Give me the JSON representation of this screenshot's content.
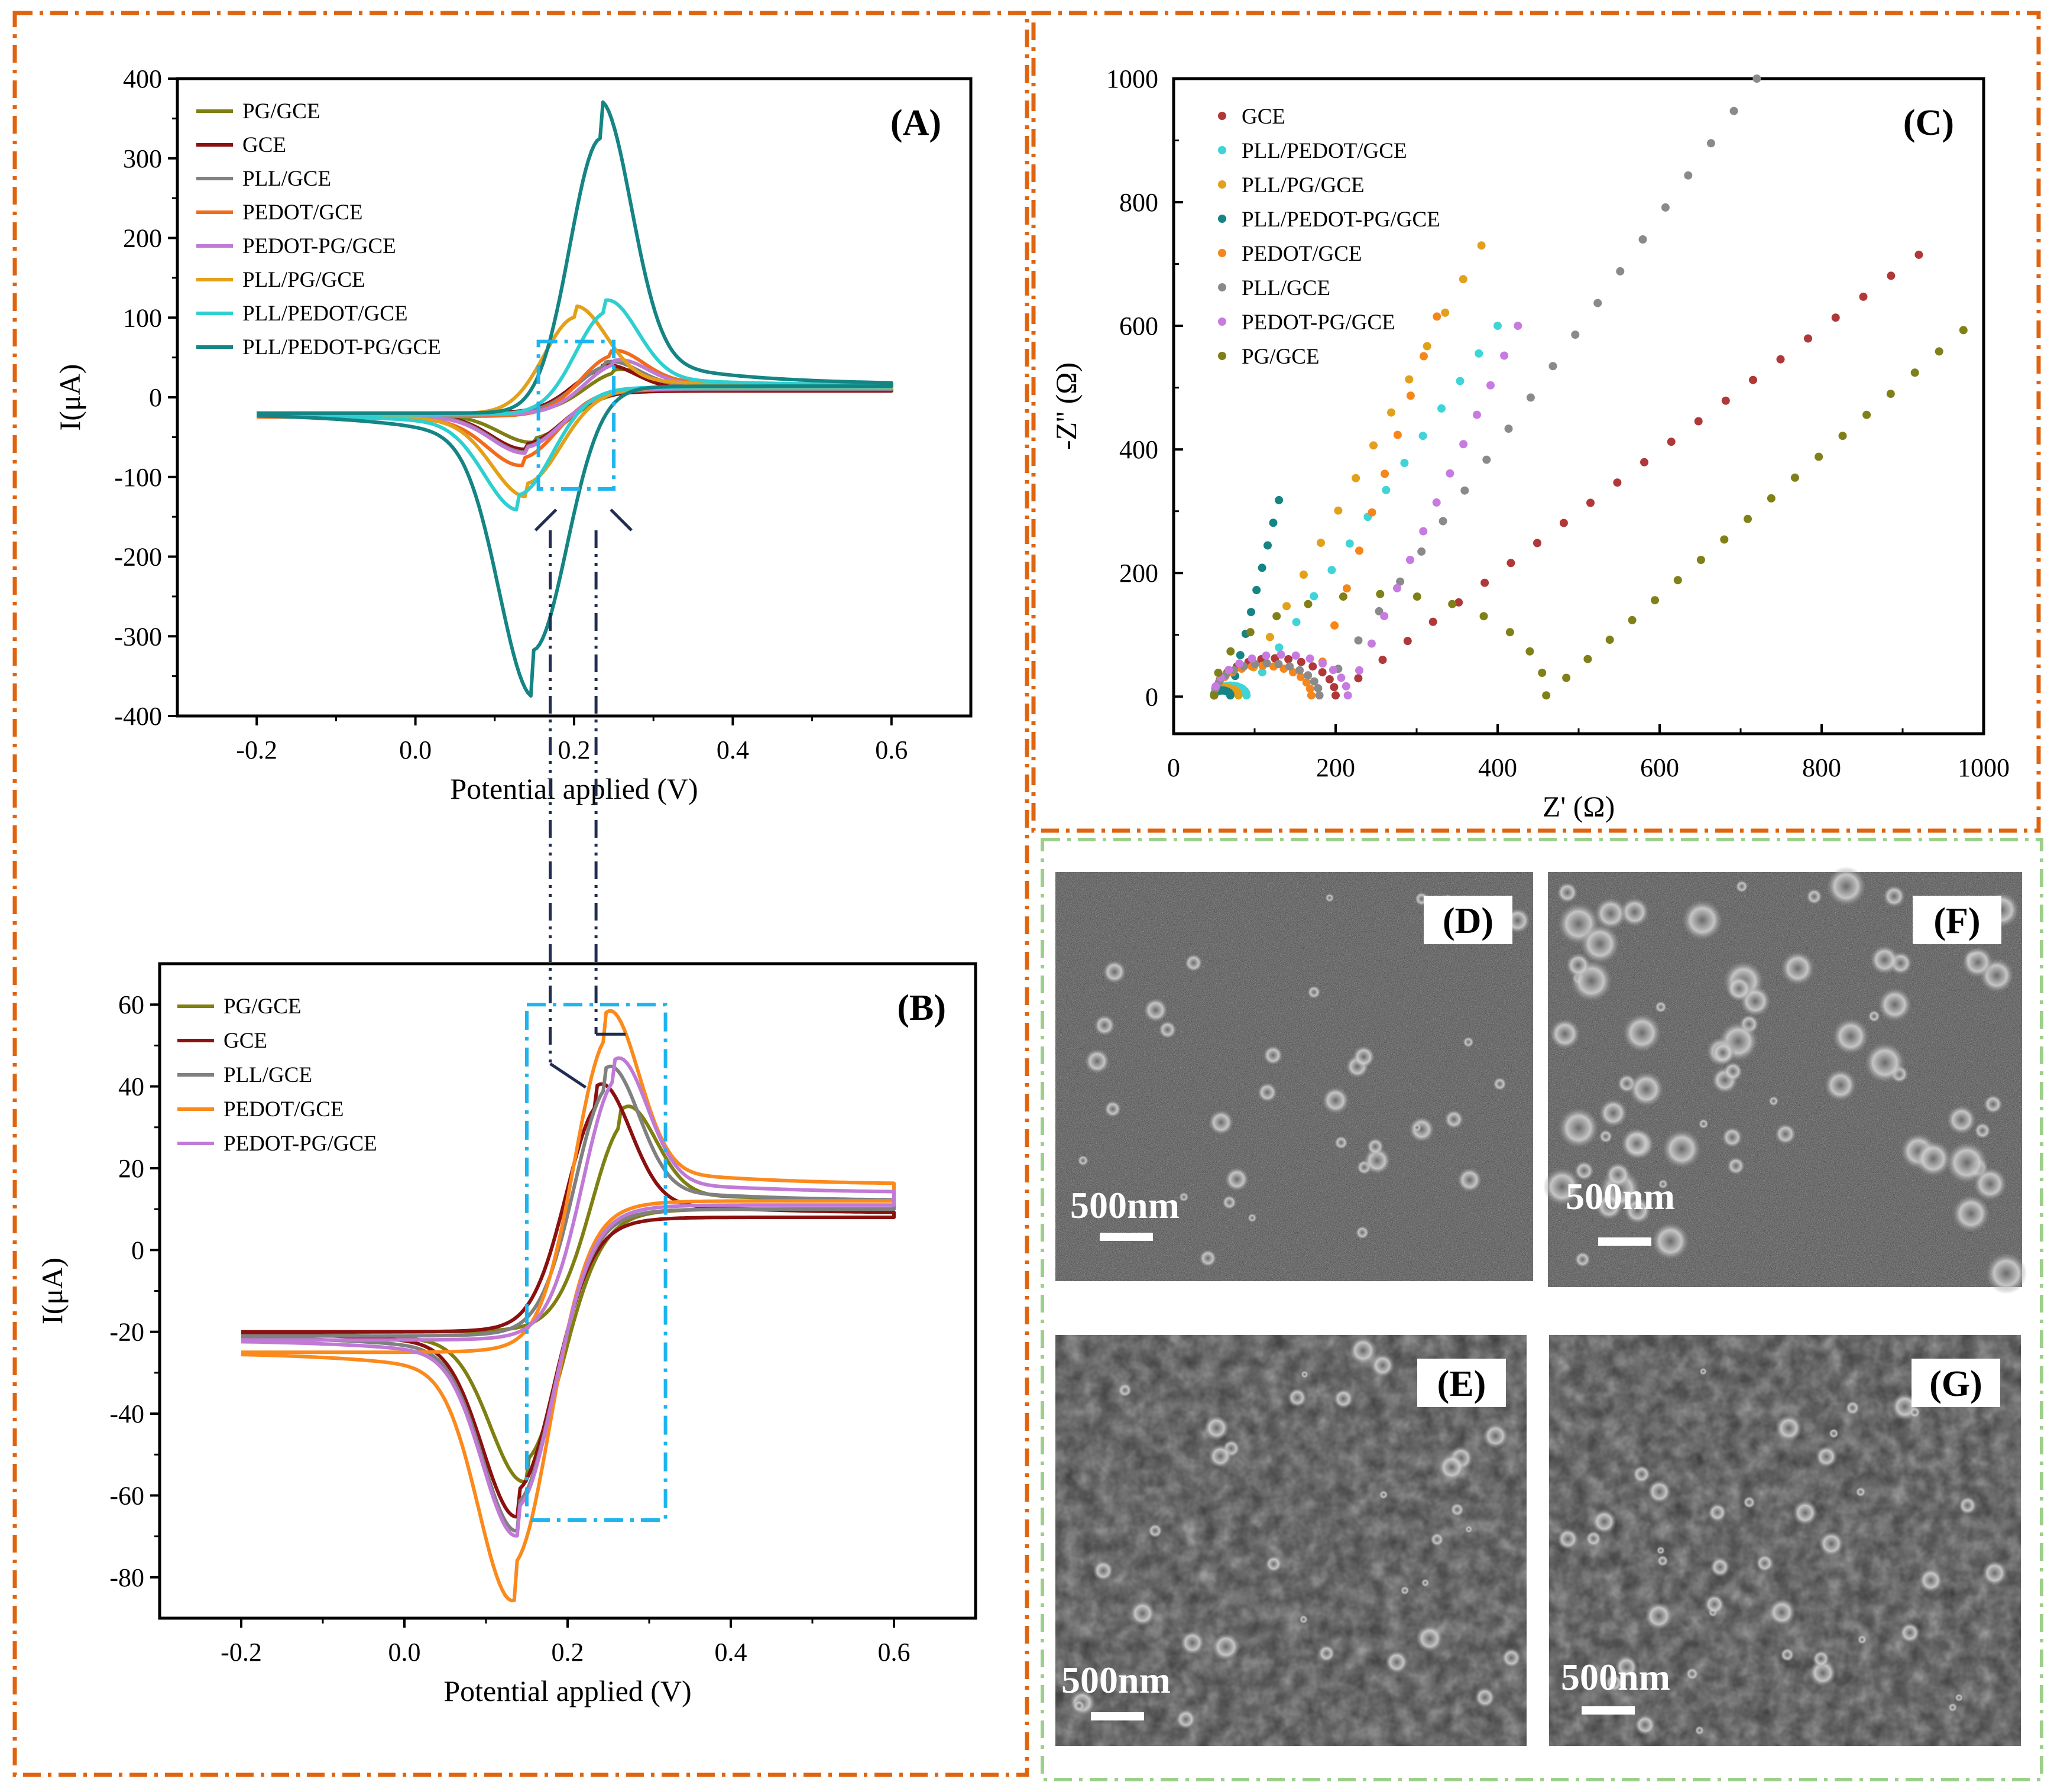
{
  "colors": {
    "orange_border": "#e0640f",
    "green_border": "#9ccf8a",
    "zoom_box": "#1eb4ee",
    "connector": "#1f2d52"
  },
  "chart_data": [
    {
      "id": "A",
      "type": "line",
      "panel_label": "(A)",
      "xlabel": "Potential applied (V)",
      "ylabel": "I(μA)",
      "xlim": [
        -0.3,
        0.7
      ],
      "ylim": [
        -400,
        400
      ],
      "xticks": [
        -0.2,
        0.0,
        0.2,
        0.4,
        0.6
      ],
      "xtick_labels": [
        "-0.2",
        "0.0",
        "0.2",
        "0.4",
        "0.6"
      ],
      "yticks": [
        -400,
        -300,
        -200,
        -100,
        0,
        100,
        200,
        300,
        400
      ],
      "ytick_labels": [
        "-400",
        "-300",
        "-200",
        "-100",
        "0",
        "100",
        "200",
        "300",
        "400"
      ],
      "legend_position": "top-left",
      "series": [
        {
          "name": "PG/GCE",
          "color": "#7f7f12",
          "x_range": [
            -0.2,
            0.6
          ],
          "anodic_peak": [
            0.25,
            36
          ],
          "cathodic_peak": [
            0.15,
            -46
          ],
          "start": -20,
          "end_high": 12,
          "end_low": 10
        },
        {
          "name": "GCE",
          "color": "#8b1010",
          "x_range": [
            -0.2,
            0.6
          ],
          "anodic_peak": [
            0.235,
            41
          ],
          "cathodic_peak": [
            0.14,
            -53
          ],
          "start": -20,
          "end_high": 9,
          "end_low": 8
        },
        {
          "name": "PLL/GCE",
          "color": "#808080",
          "x_range": [
            -0.2,
            0.6
          ],
          "anodic_peak": [
            0.24,
            45
          ],
          "cathodic_peak": [
            0.14,
            -56
          ],
          "start": -21,
          "end_high": 12,
          "end_low": 10
        },
        {
          "name": "PEDOT/GCE",
          "color": "#f26b1d",
          "x_range": [
            -0.2,
            0.6
          ],
          "anodic_peak": [
            0.245,
            58
          ],
          "cathodic_peak": [
            0.135,
            -70
          ],
          "start": -24,
          "end_high": 16,
          "end_low": 12
        },
        {
          "name": "PEDOT-PG/GCE",
          "color": "#c07ad6",
          "x_range": [
            -0.2,
            0.6
          ],
          "anodic_peak": [
            0.25,
            47
          ],
          "cathodic_peak": [
            0.14,
            -57
          ],
          "start": -22,
          "end_high": 14,
          "end_low": 11
        },
        {
          "name": "PLL/PG/GCE",
          "color": "#e3a01a",
          "x_range": [
            -0.2,
            0.6
          ],
          "anodic_peak": [
            0.2,
            106
          ],
          "cathodic_peak": [
            0.14,
            -103
          ],
          "start": -21,
          "end_high": 14,
          "end_low": 12
        },
        {
          "name": "PLL/PEDOT/GCE",
          "color": "#2fcfd0",
          "x_range": [
            -0.2,
            0.6
          ],
          "anodic_peak": [
            0.24,
            113
          ],
          "cathodic_peak": [
            0.13,
            -117
          ],
          "start": -22,
          "end_high": 15,
          "end_low": 13
        },
        {
          "name": "PLL/PEDOT-PG/GCE",
          "color": "#148484",
          "x_range": [
            -0.2,
            0.6
          ],
          "anodic_peak": [
            0.233,
            330
          ],
          "cathodic_peak": [
            0.148,
            -313
          ],
          "start": -20,
          "end_high": 16,
          "end_low": 14
        }
      ],
      "zoom_region": {
        "x": [
          0.155,
          0.25
        ],
        "y": [
          -115,
          70
        ]
      }
    },
    {
      "id": "B",
      "type": "line",
      "panel_label": "(B)",
      "xlabel": "Potential applied (V)",
      "ylabel": "I(μA)",
      "xlim": [
        -0.3,
        0.7
      ],
      "ylim": [
        -90,
        70
      ],
      "xticks": [
        -0.2,
        0.0,
        0.2,
        0.4,
        0.6
      ],
      "xtick_labels": [
        "-0.2",
        "0.0",
        "0.2",
        "0.4",
        "0.6"
      ],
      "yticks": [
        -80,
        -60,
        -40,
        -20,
        0,
        20,
        40,
        60
      ],
      "ytick_labels": [
        "-80",
        "-60",
        "-40",
        "-20",
        "0",
        "20",
        "40",
        "60"
      ],
      "legend_position": "top-left",
      "series": [
        {
          "name": "PG/GCE",
          "color": "#7f7f12",
          "x_range": [
            -0.2,
            0.6
          ],
          "anodic_peak": [
            0.265,
            36
          ],
          "cathodic_peak": [
            0.15,
            -46
          ],
          "start": -20,
          "end_high": 12,
          "end_low": 10
        },
        {
          "name": "GCE",
          "color": "#8b1010",
          "x_range": [
            -0.2,
            0.6
          ],
          "anodic_peak": [
            0.235,
            41
          ],
          "cathodic_peak": [
            0.14,
            -53
          ],
          "start": -20,
          "end_high": 9,
          "end_low": 8
        },
        {
          "name": "PLL/GCE",
          "color": "#808080",
          "x_range": [
            -0.2,
            0.6
          ],
          "anodic_peak": [
            0.245,
            45
          ],
          "cathodic_peak": [
            0.14,
            -56
          ],
          "start": -21,
          "end_high": 12,
          "end_low": 10
        },
        {
          "name": "PEDOT/GCE",
          "color": "#fb8a1c",
          "x_range": [
            -0.2,
            0.6
          ],
          "anodic_peak": [
            0.245,
            58
          ],
          "cathodic_peak": [
            0.135,
            -70
          ],
          "start": -25,
          "end_high": 16,
          "end_low": 12
        },
        {
          "name": "PEDOT-PG/GCE",
          "color": "#c07ad6",
          "x_range": [
            -0.2,
            0.6
          ],
          "anodic_peak": [
            0.255,
            47
          ],
          "cathodic_peak": [
            0.14,
            -57
          ],
          "start": -22,
          "end_high": 14,
          "end_low": 11
        }
      ],
      "zoom_region": {
        "x": [
          0.15,
          0.32
        ],
        "y": [
          -66,
          60
        ]
      }
    },
    {
      "id": "C",
      "type": "scatter",
      "panel_label": "(C)",
      "xlabel": "Z' (Ω)",
      "ylabel": "-Z'' (Ω)",
      "xlim": [
        0,
        1000
      ],
      "ylim": [
        -60,
        1000
      ],
      "xticks": [
        0,
        200,
        400,
        600,
        800,
        1000
      ],
      "xtick_labels": [
        "0",
        "200",
        "400",
        "600",
        "800",
        "1000"
      ],
      "yticks": [
        0,
        200,
        400,
        600,
        800,
        1000
      ],
      "ytick_labels": [
        "0",
        "200",
        "400",
        "600",
        "800",
        "1000"
      ],
      "legend_position": "top-left",
      "series": [
        {
          "name": "GCE",
          "color": "#b03838",
          "Rs": 50,
          "Rct": 150,
          "tail_end": [
            920,
            715
          ],
          "tail_n": 22
        },
        {
          "name": "PLL/PEDOT/GCE",
          "color": "#3fd4d8",
          "Rs": 50,
          "Rct": 40,
          "tail_end": [
            400,
            600
          ],
          "tail_n": 14
        },
        {
          "name": "PLL/PG/GCE",
          "color": "#e3a01a",
          "Rs": 50,
          "Rct": 30,
          "tail_end": [
            380,
            730
          ],
          "tail_n": 14
        },
        {
          "name": "PLL/PEDOT-PG/GCE",
          "color": "#148484",
          "Rs": 50,
          "Rct": 20,
          "tail_end": [
            130,
            318
          ],
          "tail_n": 9
        },
        {
          "name": "PEDOT/GCE",
          "color": "#f5861c",
          "Rs": 50,
          "Rct": 120,
          "tail_end": [
            325,
            615
          ],
          "tail_n": 10
        },
        {
          "name": "PLL/GCE",
          "color": "#8a8a8a",
          "Rs": 50,
          "Rct": 130,
          "tail_end": [
            720,
            1000
          ],
          "tail_n": 20
        },
        {
          "name": "PEDOT-PG/GCE",
          "color": "#c77be0",
          "Rs": 50,
          "Rct": 165,
          "tail_end": [
            425,
            600
          ],
          "tail_n": 13
        },
        {
          "name": "PG/GCE",
          "color": "#808018",
          "Rs": 50,
          "Rct": 410,
          "tail_end": [
            975,
            593
          ],
          "tail_n": 18
        }
      ]
    }
  ],
  "sem_images": [
    {
      "label": "(D)",
      "scale": "500nm"
    },
    {
      "label": "(F)",
      "scale": "500nm"
    },
    {
      "label": "(E)",
      "scale": "500nm"
    },
    {
      "label": "(G)",
      "scale": "500nm"
    }
  ]
}
